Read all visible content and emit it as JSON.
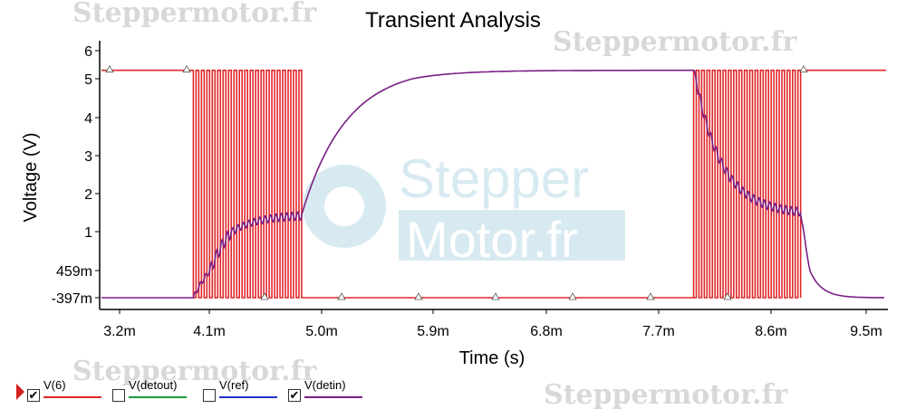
{
  "watermark": "Steppermotor.fr",
  "center_logo": {
    "line1": "Stepper",
    "line2": "Motor.fr"
  },
  "colors": {
    "v6": "#e0262b",
    "detout": "#1a9a3a",
    "ref": "#2233cc",
    "detin": "#7a1f86",
    "axis": "#000000"
  },
  "legend": [
    {
      "label": "V(6)",
      "checked": true,
      "color": "#e0262b"
    },
    {
      "label": "V(detout)",
      "checked": false,
      "color": "#1a9a3a"
    },
    {
      "label": "V(ref)",
      "checked": false,
      "color": "#2233cc"
    },
    {
      "label": "V(detin)",
      "checked": true,
      "color": "#7a1f86"
    }
  ],
  "chart_data": {
    "type": "line",
    "title": "Transient Analysis",
    "xlabel": "Time (s)",
    "ylabel": "Voltage (V)",
    "x_ticks": [
      "3.2m",
      "4.1m",
      "5.0m",
      "5.9m",
      "6.8m",
      "7.7m",
      "8.6m",
      "9.5m"
    ],
    "y_ticks": [
      "6",
      "5",
      "4",
      "3",
      "2",
      "1",
      "459m",
      "-397m"
    ],
    "xlim": [
      0.0029,
      0.0095
    ],
    "ylim": [
      -0.7,
      6.2
    ],
    "grid": false,
    "legend_position": "bottom-left",
    "series": [
      {
        "name": "V(6)",
        "description_values": {
          "high": 5.3,
          "low": -0.397,
          "burst1": [
            0.00394,
            0.00484
          ],
          "burst2": [
            0.00798,
            0.00888
          ],
          "burst_pulses": 20
        }
      },
      {
        "name": "V(detin)",
        "description_values": {
          "low": -0.397,
          "plateau_low": 1.45,
          "high": 5.3,
          "rise_start": 0.00394,
          "rise_end": 0.00484,
          "charge_start": 0.00484,
          "burst2_start": 0.00798,
          "discharge_start": 0.00888
        }
      }
    ]
  }
}
